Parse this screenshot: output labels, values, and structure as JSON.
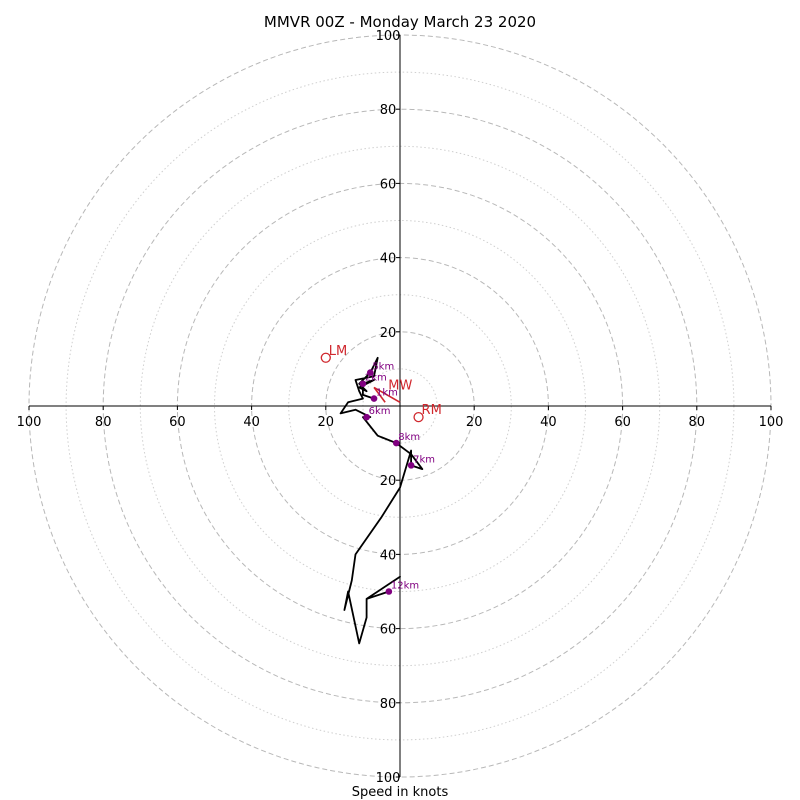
{
  "chart_data": {
    "type": "hodograph",
    "title": "MMVR 00Z - Monday March 23 2020",
    "xlabel": "Speed in knots",
    "units": "knots",
    "rmax": 100,
    "major_rings": [
      20,
      40,
      60,
      80,
      100
    ],
    "minor_rings": [
      10,
      30,
      50,
      70,
      90
    ],
    "ticks": {
      "x": [
        {
          "value": -100,
          "label": "100"
        },
        {
          "value": -80,
          "label": "80"
        },
        {
          "value": -60,
          "label": "60"
        },
        {
          "value": -40,
          "label": "40"
        },
        {
          "value": -20,
          "label": "20"
        },
        {
          "value": 20,
          "label": "20"
        },
        {
          "value": 40,
          "label": "40"
        },
        {
          "value": 60,
          "label": "60"
        },
        {
          "value": 80,
          "label": "80"
        },
        {
          "value": 100,
          "label": "100"
        }
      ],
      "y": [
        {
          "value": 100,
          "label": "100"
        },
        {
          "value": 80,
          "label": "80"
        },
        {
          "value": 60,
          "label": "60"
        },
        {
          "value": 40,
          "label": "40"
        },
        {
          "value": 20,
          "label": "20"
        },
        {
          "value": -20,
          "label": "20"
        },
        {
          "value": -40,
          "label": "40"
        },
        {
          "value": -60,
          "label": "60"
        },
        {
          "value": -80,
          "label": "80"
        },
        {
          "value": -100,
          "label": "100"
        }
      ]
    },
    "hodograph": [
      {
        "u": -7,
        "v": 2
      },
      {
        "u": -10,
        "v": 3
      },
      {
        "u": -10,
        "v": 6
      },
      {
        "u": -7,
        "v": 7
      },
      {
        "u": -11,
        "v": 5
      },
      {
        "u": -9,
        "v": 4
      },
      {
        "u": -11,
        "v": 6
      },
      {
        "u": -8,
        "v": 9
      },
      {
        "u": -6,
        "v": 13
      },
      {
        "u": -7,
        "v": 8
      },
      {
        "u": -12,
        "v": 7
      },
      {
        "u": -11,
        "v": 4
      },
      {
        "u": -10,
        "v": 2
      },
      {
        "u": -14,
        "v": 1
      },
      {
        "u": -16,
        "v": -2
      },
      {
        "u": -12,
        "v": -1
      },
      {
        "u": -8,
        "v": -3
      },
      {
        "u": -10,
        "v": -3
      },
      {
        "u": -6,
        "v": -8
      },
      {
        "u": -1,
        "v": -10
      },
      {
        "u": 3,
        "v": -13
      },
      {
        "u": 6,
        "v": -17
      },
      {
        "u": 3,
        "v": -16
      },
      {
        "u": 3,
        "v": -12
      },
      {
        "u": 0,
        "v": -22
      },
      {
        "u": -5,
        "v": -30
      },
      {
        "u": -12,
        "v": -40
      },
      {
        "u": -13,
        "v": -47
      },
      {
        "u": -15,
        "v": -55
      },
      {
        "u": -14,
        "v": -50
      },
      {
        "u": -11,
        "v": -64
      },
      {
        "u": -9,
        "v": -57
      },
      {
        "u": -9,
        "v": -52
      },
      {
        "u": 0,
        "v": -46
      },
      {
        "u": -9,
        "v": -52
      },
      {
        "u": -3,
        "v": -50
      }
    ],
    "height_markers": [
      {
        "label": "1km",
        "u": -7,
        "v": 2
      },
      {
        "label": "2km",
        "u": -10,
        "v": 6
      },
      {
        "label": "5km",
        "u": -8,
        "v": 9
      },
      {
        "label": "6km",
        "u": -9,
        "v": -3
      },
      {
        "label": "7km",
        "u": 3,
        "v": -16
      },
      {
        "label": "8km",
        "u": -1,
        "v": -10
      },
      {
        "label": "12km",
        "u": -3,
        "v": -50
      }
    ],
    "storm_motion": [
      {
        "label": "LM",
        "u": -20,
        "v": 13
      },
      {
        "label": "RM",
        "u": 5,
        "v": -3
      }
    ],
    "mean_wind": {
      "label": "MW",
      "u": -1,
      "v": 5
    },
    "motion_vectors": [
      {
        "from": {
          "u": -7,
          "v": 5
        },
        "to": {
          "u": 0,
          "v": 1
        }
      },
      {
        "from": {
          "u": -7,
          "v": 5
        },
        "to": {
          "u": -4,
          "v": 1
        }
      }
    ]
  }
}
